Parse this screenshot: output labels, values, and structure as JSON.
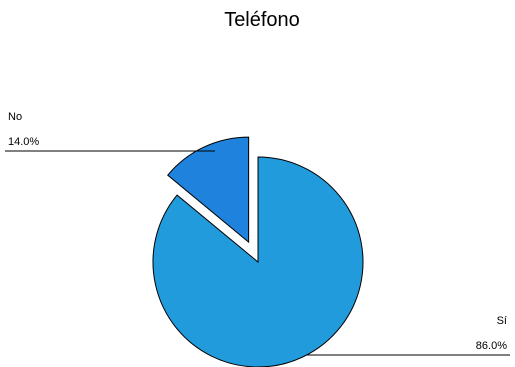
{
  "chart_data": {
    "type": "pie",
    "title": "Teléfono",
    "slices": [
      {
        "name": "Sí",
        "value": 86.0,
        "label": "86.0%",
        "color": "#229BDD",
        "exploded": false
      },
      {
        "name": "No",
        "value": 14.0,
        "label": "14.0%",
        "color": "#1F83DD",
        "exploded": true
      }
    ],
    "start_angle_deg": 0,
    "direction": "clockwise",
    "legend": "none",
    "labels_position": "outside-with-leader-lines"
  }
}
